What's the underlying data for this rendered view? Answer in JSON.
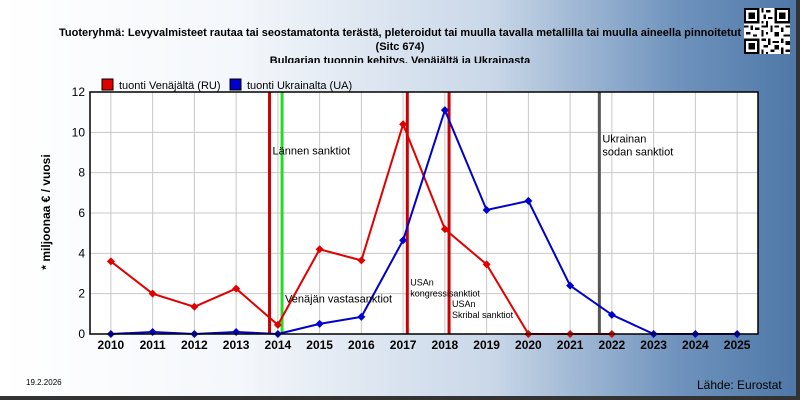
{
  "chart_data": {
    "type": "line",
    "title": "Tuoteryhmä: Levyvalmisteet rautaa tai seostamatonta terästä, pleteroidut tai muulla tavalla metallilla tai muulla aineella pinnoitetut",
    "title_line2": "(Sitc 674)",
    "subtitle": "Bulgarian tuonnin kehitys, Venäjältä ja Ukrainasta",
    "xlabel": "",
    "ylabel": "* miljoonaa € / vuosi",
    "x": [
      2010,
      2011,
      2012,
      2013,
      2014,
      2015,
      2016,
      2017,
      2018,
      2019,
      2020,
      2021,
      2022,
      2023,
      2024,
      2025
    ],
    "ylim": [
      0,
      12
    ],
    "yticks": [
      "0",
      "2",
      "4",
      "6",
      "8",
      "10",
      "12"
    ],
    "grid": true,
    "legend_position": "top-left",
    "series": [
      {
        "name": "tuonti Venäjältä (RU)",
        "color": "#e00000",
        "x": [
          2010,
          2011,
          2012,
          2013,
          2014,
          2015,
          2016,
          2017,
          2018,
          2019,
          2020,
          2021,
          2022
        ],
        "values": [
          3.6,
          2.0,
          1.35,
          2.25,
          0.45,
          4.2,
          3.65,
          10.4,
          5.2,
          3.45,
          0.0,
          0.0,
          0.0
        ]
      },
      {
        "name": "tuonti Ukrainalta (UA)",
        "color": "#0000cc",
        "x": [
          2010,
          2011,
          2012,
          2013,
          2014,
          2015,
          2016,
          2017,
          2018,
          2019,
          2020,
          2021,
          2022,
          2023,
          2024,
          2025
        ],
        "values": [
          0.0,
          0.1,
          0.0,
          0.1,
          0.0,
          0.5,
          0.85,
          4.65,
          11.1,
          6.15,
          6.6,
          2.4,
          0.95,
          0.0,
          0.0,
          0.0
        ]
      }
    ],
    "annotations": [
      {
        "year": 2013.8,
        "color": "#cc0000",
        "label": "Lännen sanktiot",
        "label_y": 8.9,
        "text_size": "large"
      },
      {
        "year": 2014.1,
        "color": "#22dd22",
        "label": "Venäjän vastasanktiot",
        "label_y": 1.55,
        "text_size": "large"
      },
      {
        "year": 2017.1,
        "color": "#cc0000",
        "label": "USAn kongressisanktiot",
        "label_y": 2.4,
        "text_size": "small"
      },
      {
        "year": 2018.1,
        "color": "#cc0000",
        "label": "USAn Skribal sanktiot",
        "label_y": 1.35,
        "text_size": "small"
      },
      {
        "year": 2021.7,
        "color": "#555555",
        "label": "Ukrainan sodan sanktiot",
        "label_y": 9.5,
        "text_size": "large"
      }
    ]
  },
  "footer": {
    "date": "19.2.2026",
    "source": "Lähde: Eurostat"
  }
}
